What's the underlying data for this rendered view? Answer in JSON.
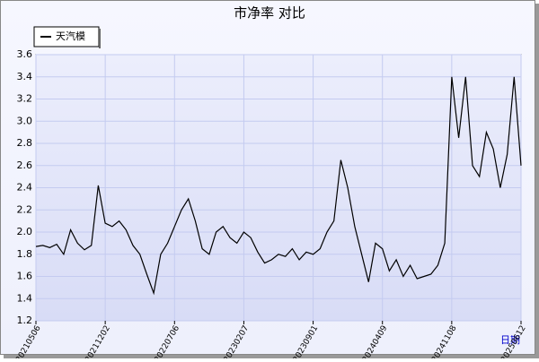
{
  "chart_data": {
    "type": "line",
    "title": "市净率 对比",
    "x_label": "日期",
    "categories": [
      "20210506",
      null,
      null,
      null,
      null,
      null,
      null,
      null,
      null,
      null,
      "20211202",
      null,
      null,
      null,
      null,
      null,
      null,
      null,
      null,
      null,
      "20220706",
      null,
      null,
      null,
      null,
      null,
      null,
      null,
      null,
      null,
      "20230207",
      null,
      null,
      null,
      null,
      null,
      null,
      null,
      null,
      null,
      "20230901",
      null,
      null,
      null,
      null,
      null,
      null,
      null,
      null,
      null,
      "20240409",
      null,
      null,
      null,
      null,
      null,
      null,
      null,
      null,
      null,
      "20241108",
      null,
      null,
      null,
      null,
      null,
      null,
      null,
      null,
      null,
      "20250612"
    ],
    "series": [
      {
        "name": "天汽模",
        "color": "#000000",
        "values": [
          1.87,
          1.88,
          1.86,
          1.89,
          1.8,
          2.02,
          1.9,
          1.84,
          1.88,
          2.42,
          2.08,
          2.05,
          2.1,
          2.02,
          1.88,
          1.8,
          1.62,
          1.45,
          1.8,
          1.9,
          2.05,
          2.2,
          2.3,
          2.1,
          1.85,
          1.8,
          2.0,
          2.05,
          1.95,
          1.9,
          2.0,
          1.95,
          1.82,
          1.72,
          1.75,
          1.8,
          1.78,
          1.85,
          1.75,
          1.82,
          1.8,
          1.85,
          2.0,
          2.1,
          2.65,
          2.4,
          2.05,
          1.8,
          1.55,
          1.9,
          1.85,
          1.65,
          1.75,
          1.6,
          1.7,
          1.58,
          1.6,
          1.62,
          1.7,
          1.9,
          3.4,
          2.85,
          3.4,
          2.6,
          2.5,
          2.9,
          2.75,
          2.4,
          2.7,
          3.4,
          2.6
        ]
      }
    ],
    "ylim": [
      1.2,
      3.6
    ],
    "yticks": [
      1.2,
      1.4,
      1.6,
      1.8,
      {
        "value": 2,
        "label": "2.0"
      },
      2.2,
      2.4,
      2.6,
      2.8,
      {
        "value": 3,
        "label": "3.0"
      },
      3.2,
      3.4,
      3.6
    ],
    "grid": true,
    "legend": "top-left"
  }
}
